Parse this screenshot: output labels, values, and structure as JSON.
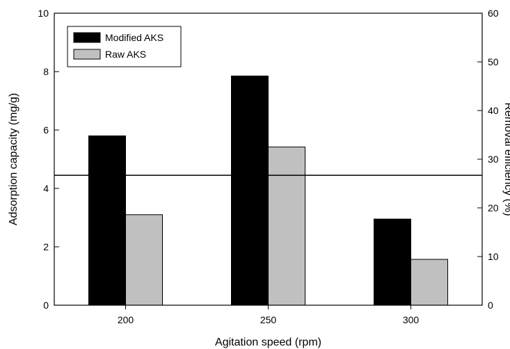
{
  "chart_data": {
    "type": "bar",
    "categories": [
      "200",
      "250",
      "300"
    ],
    "series": [
      {
        "name": "Modified AKS",
        "values": [
          5.8,
          7.85,
          2.95
        ],
        "color": "#000000"
      },
      {
        "name": "Raw AKS",
        "values": [
          3.1,
          5.42,
          1.57
        ],
        "color": "#c0c0c0"
      }
    ],
    "xlabel": "Agitation speed (rpm)",
    "ylabel": "Adsorption capacity (mg/g)",
    "y2label": "Removal efficiency (%)",
    "ylim": [
      0,
      10
    ],
    "y2lim": [
      0,
      60
    ],
    "yticks": [
      "0",
      "2",
      "4",
      "6",
      "8",
      "10"
    ],
    "y2ticks": [
      "0",
      "10",
      "20",
      "30",
      "40",
      "50",
      "60"
    ],
    "removal_efficiency_line": 26.7,
    "grid": false,
    "legend": "top-left"
  }
}
